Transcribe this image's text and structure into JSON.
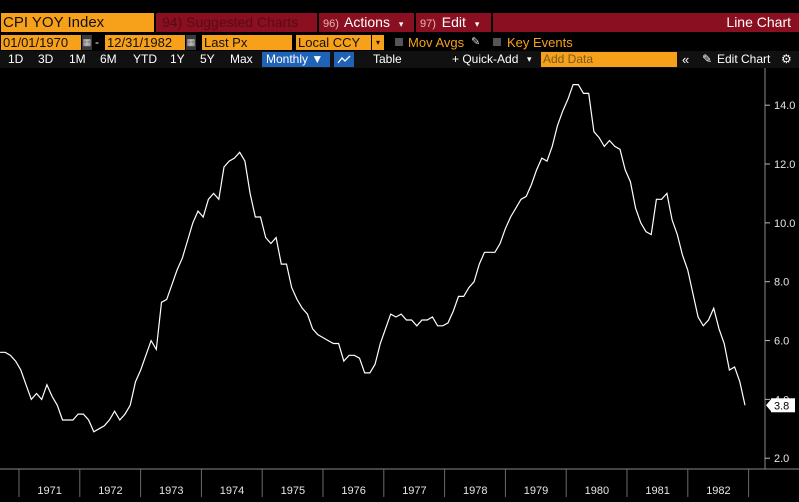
{
  "toolbar": {
    "ticker": "CPI YOY Index",
    "suggested_num": "94)",
    "suggested_label": "Suggested Charts",
    "actions_num": "96)",
    "actions_label": "Actions",
    "edit_num": "97)",
    "edit_label": "Edit",
    "chart_type": "Line Chart"
  },
  "params": {
    "start_date": "01/01/1970",
    "end_date": "12/31/1982",
    "field": "Last Px",
    "currency": "Local CCY",
    "mov_avgs": "Mov Avgs",
    "key_events": "Key Events"
  },
  "ranges": {
    "items": [
      "1D",
      "3D",
      "1M",
      "6M",
      "YTD",
      "1Y",
      "5Y",
      "Max"
    ],
    "period": "Monthly ▼",
    "table": "Table",
    "quick_add": "+ Quick-Add",
    "add_data_placeholder": "Add Data",
    "edit_chart": "Edit Chart"
  },
  "colors": {
    "accent_orange": "#f7a11a",
    "header_red": "#8a0f20",
    "active_blue": "#1e63b8",
    "line": "#ffffff"
  },
  "chart_data": {
    "type": "line",
    "title": "",
    "xlabel": "",
    "ylabel": "",
    "ylim": [
      1.6,
      15.4
    ],
    "y_ticks": [
      2.0,
      4.0,
      6.0,
      8.0,
      10.0,
      12.0,
      14.0
    ],
    "y_tick_labels": [
      "2.0",
      "4.0",
      "6.0",
      "8.0",
      "10.0",
      "12.0",
      "14.0"
    ],
    "x_labels": [
      "1971",
      "1972",
      "1973",
      "1974",
      "1975",
      "1976",
      "1977",
      "1978",
      "1979",
      "1980",
      "1981",
      "1982"
    ],
    "last_value_label": "3.8",
    "grid": false,
    "series": [
      {
        "values": [
          5.6,
          5.6,
          5.5,
          5.3,
          5.0,
          4.5,
          4.0,
          4.2,
          4.0,
          4.5,
          4.1,
          3.8,
          3.3,
          3.3,
          3.3,
          3.5,
          3.5,
          3.3,
          2.9,
          3.0,
          3.1,
          3.3,
          3.6,
          3.3,
          3.5,
          3.8,
          4.6,
          5.0,
          5.5,
          6.0,
          5.7,
          7.3,
          7.4,
          7.9,
          8.4,
          8.8,
          9.4,
          10.0,
          10.4,
          10.2,
          10.8,
          11.0,
          10.8,
          11.9,
          12.1,
          12.2,
          12.4,
          12.1,
          11.0,
          10.2,
          10.2,
          9.5,
          9.3,
          9.5,
          8.6,
          8.6,
          7.8,
          7.4,
          7.1,
          6.9,
          6.4,
          6.2,
          6.1,
          6.0,
          5.9,
          5.9,
          5.3,
          5.5,
          5.5,
          5.4,
          4.9,
          4.9,
          5.2,
          5.9,
          6.4,
          6.9,
          6.8,
          6.9,
          6.7,
          6.7,
          6.5,
          6.7,
          6.7,
          6.8,
          6.5,
          6.5,
          6.6,
          7.0,
          7.5,
          7.5,
          7.8,
          8.0,
          8.6,
          9.0,
          9.0,
          9.0,
          9.3,
          9.8,
          10.2,
          10.5,
          10.8,
          10.9,
          11.3,
          11.8,
          12.2,
          12.1,
          12.6,
          13.3,
          13.8,
          14.2,
          14.7,
          14.7,
          14.4,
          14.4,
          13.1,
          12.9,
          12.6,
          12.8,
          12.6,
          12.5,
          11.8,
          11.4,
          10.5,
          10.0,
          9.7,
          9.6,
          10.8,
          10.8,
          11.0,
          10.1,
          9.6,
          8.9,
          8.4,
          7.6,
          6.8,
          6.5,
          6.7,
          7.1,
          6.4,
          5.9,
          5.0,
          5.1,
          4.6,
          3.8
        ]
      }
    ]
  }
}
